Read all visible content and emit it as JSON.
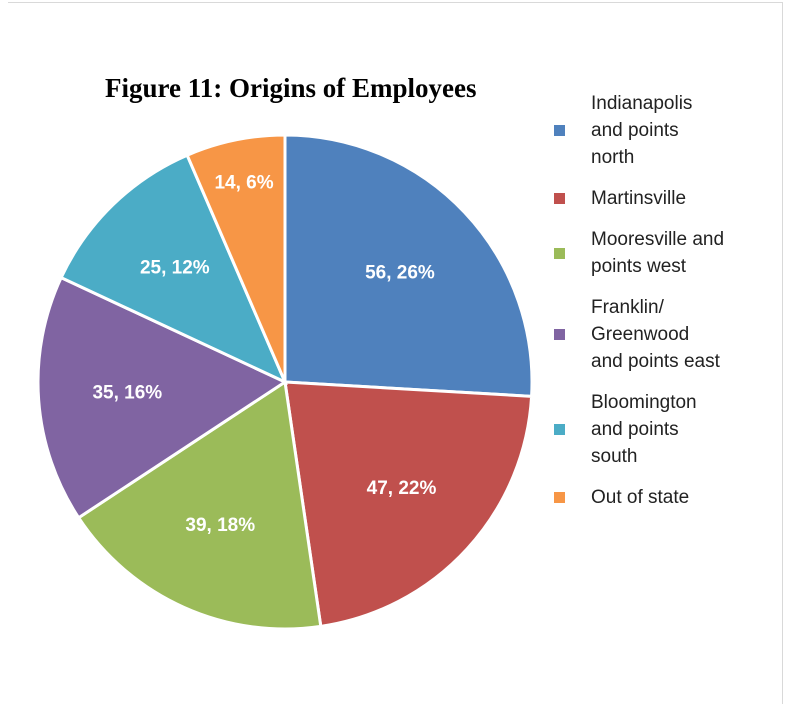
{
  "chart_data": {
    "type": "pie",
    "title": "Figure 11: Origins of Employees",
    "categories": [
      "Indianapolis and points north",
      "Martinsville",
      "Mooresville and points west",
      "Franklin/ Greenwood and points east",
      "Bloomington and points south",
      "Out of state"
    ],
    "values": [
      56,
      47,
      39,
      35,
      25,
      14
    ],
    "value_labels": [
      "56, 26%",
      "47, 22%",
      "39, 18%",
      "35, 16%",
      "25, 12%",
      "14, 6%"
    ],
    "colors": [
      "#4f81bd",
      "#c0504d",
      "#9bbb59",
      "#8064a2",
      "#4bacc6",
      "#f79646"
    ],
    "legend": "right"
  }
}
